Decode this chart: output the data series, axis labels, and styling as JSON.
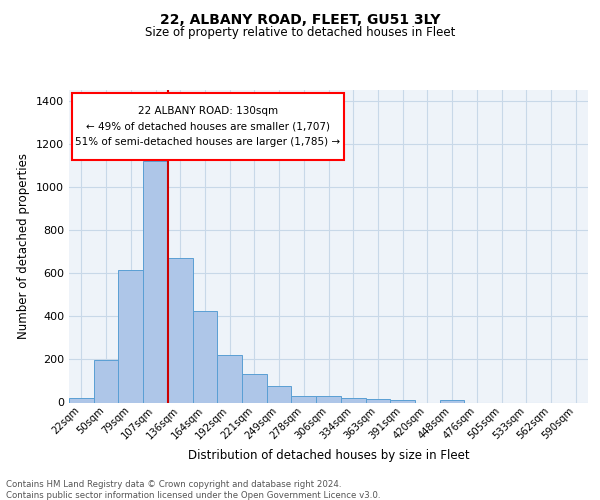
{
  "title1": "22, ALBANY ROAD, FLEET, GU51 3LY",
  "title2": "Size of property relative to detached houses in Fleet",
  "xlabel": "Distribution of detached houses by size in Fleet",
  "ylabel": "Number of detached properties",
  "categories": [
    "22sqm",
    "50sqm",
    "79sqm",
    "107sqm",
    "136sqm",
    "164sqm",
    "192sqm",
    "221sqm",
    "249sqm",
    "278sqm",
    "306sqm",
    "334sqm",
    "363sqm",
    "391sqm",
    "420sqm",
    "448sqm",
    "476sqm",
    "505sqm",
    "533sqm",
    "562sqm",
    "590sqm"
  ],
  "values": [
    20,
    195,
    615,
    1120,
    670,
    425,
    220,
    130,
    75,
    30,
    28,
    20,
    14,
    10,
    0,
    12,
    0,
    0,
    0,
    0,
    0
  ],
  "bar_color": "#aec6e8",
  "bar_edge_color": "#5a9fd4",
  "grid_color": "#c8d8e8",
  "background_color": "#eef3f9",
  "annotation_line1": "22 ALBANY ROAD: 130sqm",
  "annotation_line2": "← 49% of detached houses are smaller (1,707)",
  "annotation_line3": "51% of semi-detached houses are larger (1,785) →",
  "red_line_color": "#cc0000",
  "ylim": [
    0,
    1450
  ],
  "yticks": [
    0,
    200,
    400,
    600,
    800,
    1000,
    1200,
    1400
  ],
  "footer1": "Contains HM Land Registry data © Crown copyright and database right 2024.",
  "footer2": "Contains public sector information licensed under the Open Government Licence v3.0."
}
